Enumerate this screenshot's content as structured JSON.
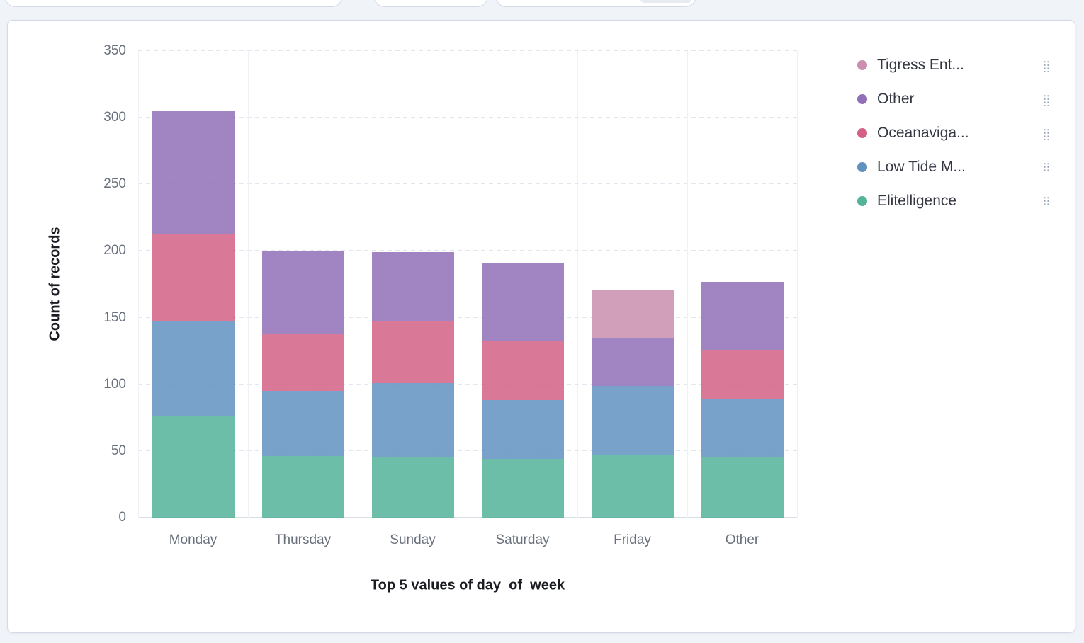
{
  "colors": {
    "panel_border": "#d3dae6",
    "page_background": "#f0f3f8",
    "panel_background": "#ffffff",
    "tick_label": "#69707d",
    "axis_title": "#1a1c21",
    "legend_text": "#343741",
    "legend_actions_icon": "#98a2b3"
  },
  "legend_action_icon": "dots-grid-icon",
  "chart_data": {
    "type": "bar",
    "stacked": true,
    "title": "",
    "xlabel": "Top 5 values of day_of_week",
    "ylabel": "Count of records",
    "ylim": [
      0,
      350
    ],
    "yticks": [
      0,
      50,
      100,
      150,
      200,
      250,
      300,
      350
    ],
    "grid": true,
    "categories": [
      "Monday",
      "Thursday",
      "Sunday",
      "Saturday",
      "Friday",
      "Other"
    ],
    "series": [
      {
        "name": "Elitelligence",
        "color": "#54B399",
        "values": [
          76,
          46,
          45,
          44,
          47,
          45
        ]
      },
      {
        "name": "Low Tide M...",
        "color": "#6092C0",
        "values": [
          71,
          49,
          56,
          44,
          52,
          44
        ]
      },
      {
        "name": "Oceanaviga...",
        "color": "#D36086",
        "values": [
          66,
          43,
          46,
          45,
          0,
          37
        ]
      },
      {
        "name": "Other",
        "color": "#9170B8",
        "values": [
          92,
          62,
          52,
          58,
          36,
          51
        ]
      },
      {
        "name": "Tigress Ent...",
        "color": "#CA8EAE",
        "values": [
          0,
          0,
          0,
          0,
          36,
          0
        ]
      }
    ],
    "totals": [
      305,
      200,
      199,
      191,
      171,
      177
    ],
    "legend": {
      "position": "right",
      "items": [
        {
          "label": "Tigress Ent...",
          "color": "#CA8EAE"
        },
        {
          "label": "Other",
          "color": "#9170B8"
        },
        {
          "label": "Oceanaviga...",
          "color": "#D36086"
        },
        {
          "label": "Low Tide M...",
          "color": "#6092C0"
        },
        {
          "label": "Elitelligence",
          "color": "#54B399"
        }
      ]
    }
  }
}
